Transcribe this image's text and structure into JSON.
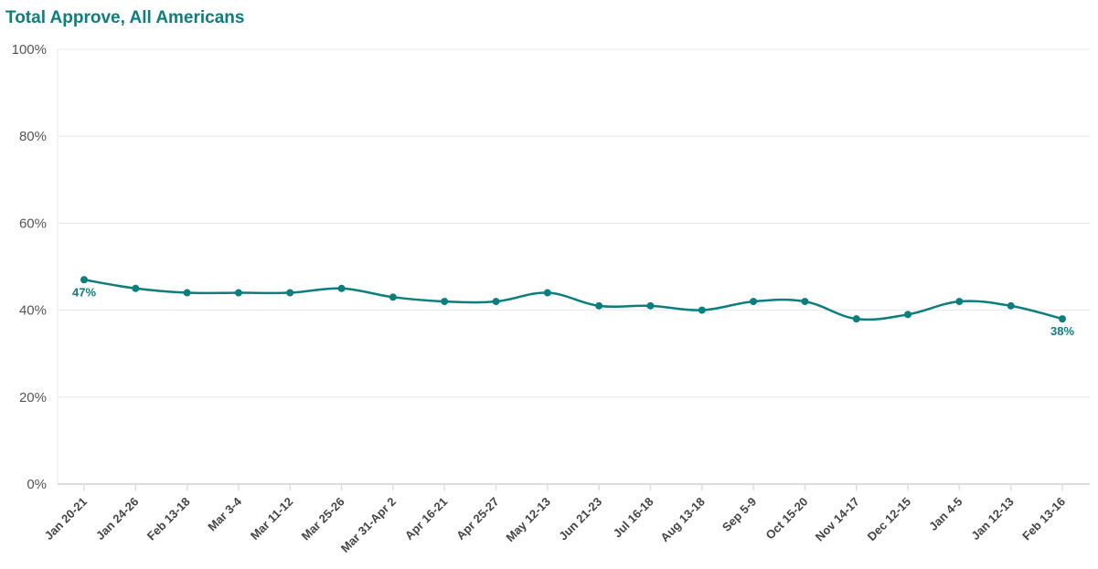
{
  "chart_data": {
    "type": "line",
    "title": "Total Approve, All Americans",
    "xlabel": "",
    "ylabel": "",
    "ylim": [
      0,
      100
    ],
    "yticks": [
      "0%",
      "20%",
      "40%",
      "60%",
      "80%",
      "100%"
    ],
    "grid": true,
    "color": "#0b7e7d",
    "categories": [
      "Jan 20-21",
      "Jan 24-26",
      "Feb 13-18",
      "Mar 3-4",
      "Mar 11-12",
      "Mar 25-26",
      "Mar 31-Apr 2",
      "Apr 16-21",
      "Apr 25-27",
      "May 12-13",
      "Jun 21-23",
      "Jul 16-18",
      "Aug 13-18",
      "Sep 5-9",
      "Oct 15-20",
      "Nov 14-17",
      "Dec 12-15",
      "Jan 4-5",
      "Jan 12-13",
      "Feb 13-16"
    ],
    "series": [
      {
        "name": "Total Approve",
        "values": [
          47,
          45,
          44,
          44,
          44,
          45,
          43,
          42,
          42,
          44,
          41,
          41,
          40,
          42,
          42,
          38,
          39,
          42,
          41,
          38
        ]
      }
    ],
    "data_labels": [
      {
        "index": 0,
        "text": "47%"
      },
      {
        "index": 19,
        "text": "38%"
      }
    ]
  }
}
